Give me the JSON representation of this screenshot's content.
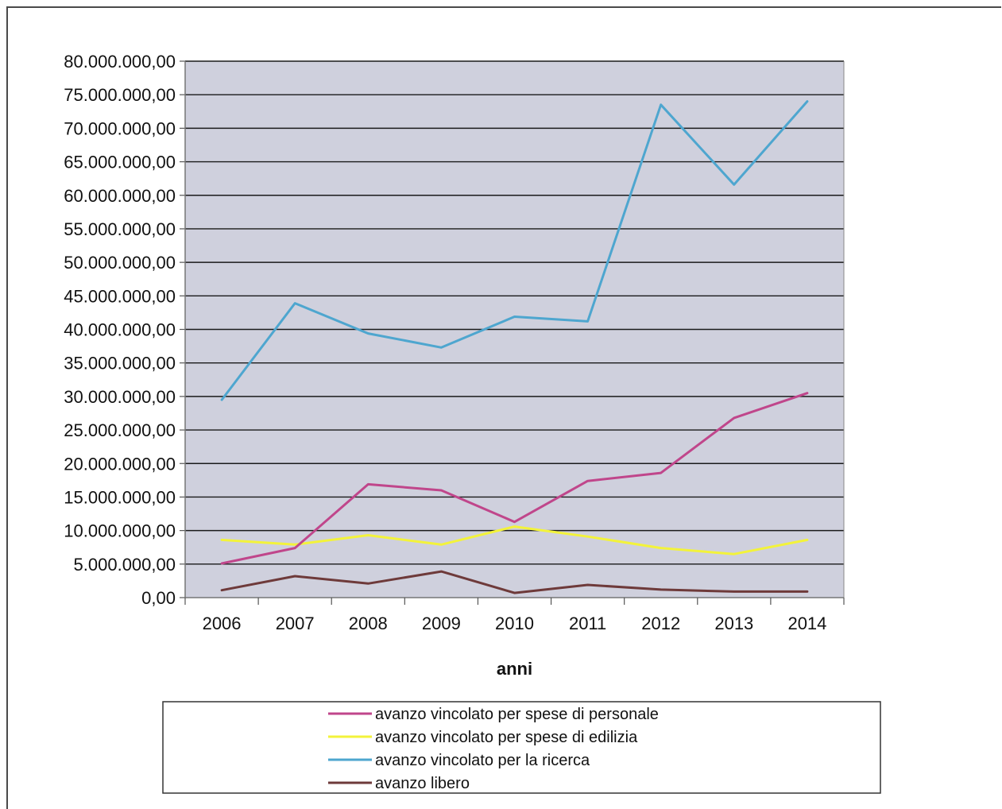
{
  "chart_data": {
    "type": "line",
    "title": "",
    "xlabel": "anni",
    "ylabel": "",
    "ylim": [
      0,
      80000000
    ],
    "ytick_step": 5000000,
    "ytick_labels": [
      "0,00",
      "5.000.000,00",
      "10.000.000,00",
      "15.000.000,00",
      "20.000.000,00",
      "25.000.000,00",
      "30.000.000,00",
      "35.000.000,00",
      "40.000.000,00",
      "45.000.000,00",
      "50.000.000,00",
      "55.000.000,00",
      "60.000.000,00",
      "65.000.000,00",
      "70.000.000,00",
      "75.000.000,00",
      "80.000.000,00"
    ],
    "categories": [
      "2006",
      "2007",
      "2008",
      "2009",
      "2010",
      "2011",
      "2012",
      "2013",
      "2014"
    ],
    "grid": true,
    "legend_position": "bottom",
    "plot_background": "#cfd0dd",
    "series": [
      {
        "name": "avanzo vincolato per spese di personale",
        "color": "#c0468b",
        "values": [
          5100000,
          7400000,
          16900000,
          16000000,
          11300000,
          17400000,
          18600000,
          26800000,
          30500000
        ]
      },
      {
        "name": "avanzo vincolato per spese di edilizia",
        "color": "#f3f33a",
        "values": [
          8600000,
          7900000,
          9300000,
          7900000,
          10600000,
          9100000,
          7400000,
          6500000,
          8600000
        ]
      },
      {
        "name": "avanzo vincolato per la ricerca",
        "color": "#4ea6cf",
        "values": [
          29500000,
          43900000,
          39400000,
          37300000,
          41900000,
          41200000,
          73500000,
          61600000,
          74000000
        ]
      },
      {
        "name": "avanzo libero",
        "color": "#6e3a3a",
        "values": [
          1100000,
          3200000,
          2100000,
          3900000,
          700000,
          1900000,
          1200000,
          900000,
          900000
        ]
      }
    ]
  }
}
